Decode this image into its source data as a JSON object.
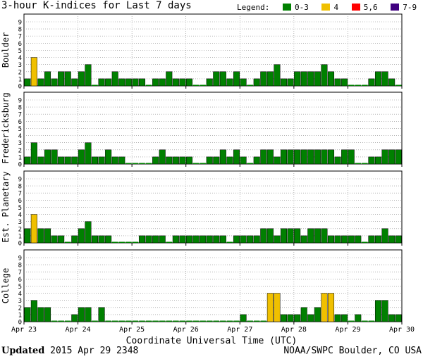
{
  "header": {
    "title": "3-hour K-indices for Last 7 days",
    "legend_label": "Legend:",
    "legend": [
      {
        "label": "0-3",
        "color": "#008000"
      },
      {
        "label": "4",
        "color": "#f0c000"
      },
      {
        "label": "5,6",
        "color": "#ff0000"
      },
      {
        "label": "7-9",
        "color": "#400080"
      }
    ]
  },
  "chart_data": {
    "type": "bar",
    "title": "3-hour K-indices for Last 7 days",
    "xlabel": "Coordinate Universal Time (UTC)",
    "ylim": [
      0,
      9
    ],
    "yticks": [
      "0",
      "1",
      "2",
      "3",
      "4",
      "5",
      "6",
      "7",
      "8",
      "9"
    ],
    "xticks": [
      "Apr 23",
      "Apr 24",
      "Apr 25",
      "Apr 26",
      "Apr 27",
      "Apr 28",
      "Apr 29",
      "Apr 30"
    ],
    "bins_per_day": 8,
    "colors": {
      "low": "#008000",
      "k4": "#f0c000",
      "k56": "#ff0000",
      "k79": "#400080"
    },
    "series": [
      {
        "name": "Boulder",
        "values": [
          1,
          4,
          1,
          2,
          1,
          2,
          2,
          1,
          2,
          3,
          0,
          1,
          1,
          2,
          1,
          1,
          1,
          1,
          0,
          1,
          1,
          2,
          1,
          1,
          1,
          0,
          0,
          1,
          2,
          2,
          1,
          2,
          1,
          0,
          1,
          2,
          2,
          3,
          1,
          1,
          2,
          2,
          2,
          2,
          3,
          2,
          1,
          1,
          0,
          0,
          0,
          1,
          2,
          2,
          1,
          0
        ]
      },
      {
        "name": "Fredericksburg",
        "values": [
          1,
          3,
          1,
          2,
          2,
          1,
          1,
          1,
          2,
          3,
          1,
          1,
          2,
          1,
          1,
          0,
          0,
          0,
          0,
          1,
          2,
          1,
          1,
          1,
          1,
          0,
          0,
          1,
          1,
          2,
          1,
          2,
          1,
          0,
          1,
          2,
          2,
          1,
          2,
          2,
          2,
          2,
          2,
          2,
          2,
          2,
          1,
          2,
          2,
          0,
          0,
          1,
          1,
          2,
          2,
          2
        ]
      },
      {
        "name": "Est. Planetary",
        "values": [
          2,
          4,
          2,
          2,
          1,
          1,
          0,
          1,
          2,
          3,
          1,
          1,
          1,
          0,
          0,
          0,
          0,
          1,
          1,
          1,
          1,
          0,
          1,
          1,
          1,
          1,
          1,
          1,
          1,
          1,
          0,
          1,
          1,
          1,
          1,
          2,
          2,
          1,
          2,
          2,
          2,
          1,
          2,
          2,
          2,
          1,
          1,
          1,
          1,
          1,
          0,
          1,
          1,
          2,
          1,
          1
        ]
      },
      {
        "name": "College",
        "values": [
          2,
          3,
          2,
          2,
          0,
          0,
          0,
          1,
          2,
          2,
          0,
          2,
          0,
          0,
          0,
          0,
          0,
          0,
          0,
          0,
          0,
          0,
          0,
          0,
          0,
          0,
          0,
          0,
          0,
          0,
          0,
          0,
          1,
          0,
          0,
          0,
          4,
          4,
          1,
          1,
          1,
          2,
          1,
          2,
          4,
          4,
          1,
          1,
          0,
          1,
          0,
          0,
          3,
          3,
          1,
          1
        ]
      }
    ]
  },
  "footer": {
    "updated_label": "Updated",
    "updated_value": "2015 Apr 29 2348",
    "credit": "NOAA/SWPC Boulder, CO USA"
  }
}
